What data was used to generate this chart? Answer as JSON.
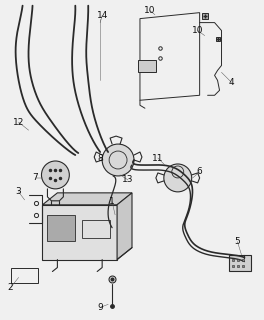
{
  "bg_color": "#f0f0f0",
  "line_color": "#2a2a2a",
  "label_color": "#111111",
  "figure_width": 2.64,
  "figure_height": 3.2,
  "dpi": 100
}
